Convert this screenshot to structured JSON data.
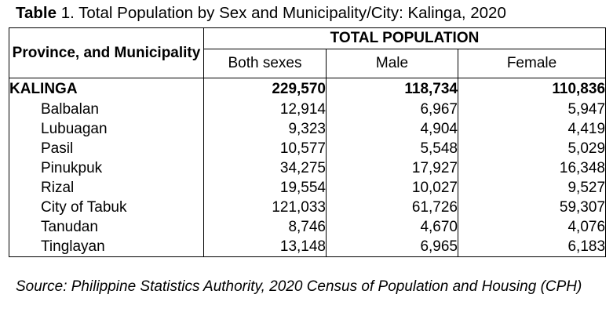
{
  "caption": {
    "label": "Table",
    "text": " 1. Total Population by Sex and Municipality/City: Kalinga, 2020"
  },
  "table": {
    "corner_header": "Province, and Municipality",
    "group_header": "TOTAL POPULATION",
    "sub_headers": [
      "Both sexes",
      "Male",
      "Female"
    ],
    "total_row": {
      "name": "KALINGA",
      "both": "229,570",
      "male": "118,734",
      "female": "110,836"
    },
    "rows": [
      {
        "name": "Balbalan",
        "both": "12,914",
        "male": "6,967",
        "female": "5,947"
      },
      {
        "name": "Lubuagan",
        "both": "9,323",
        "male": "4,904",
        "female": "4,419"
      },
      {
        "name": "Pasil",
        "both": "10,577",
        "male": "5,548",
        "female": "5,029"
      },
      {
        "name": "Pinukpuk",
        "both": "34,275",
        "male": "17,927",
        "female": "16,348"
      },
      {
        "name": "Rizal",
        "both": "19,554",
        "male": "10,027",
        "female": "9,527"
      },
      {
        "name": "City of Tabuk",
        "both": "121,033",
        "male": "61,726",
        "female": "59,307"
      },
      {
        "name": "Tanudan",
        "both": "8,746",
        "male": "4,670",
        "female": "4,076"
      },
      {
        "name": "Tinglayan",
        "both": "13,148",
        "male": "6,965",
        "female": "6,183"
      }
    ]
  },
  "source": "Source: Philippine Statistics Authority, 2020 Census of Population and Housing (CPH)"
}
